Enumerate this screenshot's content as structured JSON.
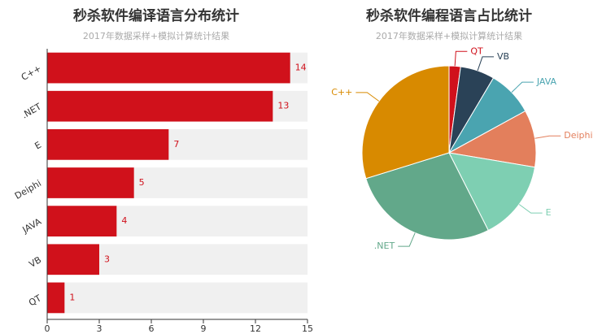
{
  "chart_data": [
    {
      "type": "hbar",
      "title": "秒杀软件编译语言分布统计",
      "subtitle": "2017年数据采样+模拟计算统计结果",
      "categories": [
        "C++",
        ".NET",
        "E",
        "Deiphi",
        "JAVA",
        "VB",
        "QT"
      ],
      "values": [
        14,
        13,
        7,
        5,
        4,
        3,
        1
      ],
      "color": "#d0111b",
      "xlim": [
        0,
        15
      ],
      "xticks": [
        0,
        3,
        6,
        9,
        12,
        15
      ]
    },
    {
      "type": "pie",
      "title": "秒杀软件编程语言占比统计",
      "subtitle": "2017年数据采样+模拟计算统计结果",
      "categories": [
        "QT",
        "VB",
        "JAVA",
        "Deiphi",
        "E",
        ".NET",
        "C++"
      ],
      "values": [
        1,
        3,
        4,
        5,
        7,
        13,
        14
      ],
      "colors": [
        "#d0111b",
        "#2a4257",
        "#4aa4b0",
        "#e37f5c",
        "#7ecfb2",
        "#62a88a",
        "#d88a00"
      ]
    }
  ]
}
